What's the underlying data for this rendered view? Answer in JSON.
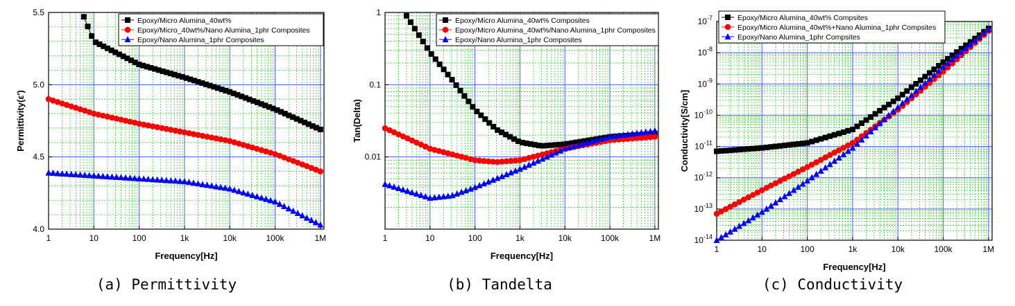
{
  "chart_data": [
    {
      "type": "scatter",
      "xlabel": "Frequency[Hz]",
      "ylabel": "Permittivity(ε')",
      "caption": "(a) Permittivity",
      "x_scale": "log",
      "y_scale": "linear",
      "xlim": [
        1,
        1200000
      ],
      "ylim": [
        4.0,
        5.5
      ],
      "x_ticks": [
        1,
        10,
        100,
        1000,
        10000,
        100000,
        1000000
      ],
      "x_tick_labels": [
        "1",
        "10",
        "100",
        "1k",
        "10k",
        "100k",
        "1M"
      ],
      "y_ticks": [
        4.0,
        4.5,
        5.0,
        5.5
      ],
      "y_tick_labels": [
        "4.0",
        "4.5",
        "5.0",
        "5.5"
      ],
      "grid": true,
      "legend_position": "top-right",
      "series": [
        {
          "name": "Epoxy/Micro Alumina_40wt%",
          "color": "#000000",
          "marker": "square",
          "x": [
            6,
            10,
            100,
            1000,
            10000,
            100000,
            1000000
          ],
          "y": [
            5.47,
            5.3,
            5.14,
            5.05,
            4.95,
            4.83,
            4.69
          ]
        },
        {
          "name": "Epoxy/Micro_40wt%/Nano Alumina_1phr Composites",
          "color": "#ff0000",
          "marker": "circle",
          "x": [
            1,
            10,
            100,
            1000,
            10000,
            100000,
            1000000
          ],
          "y": [
            4.9,
            4.8,
            4.73,
            4.67,
            4.61,
            4.52,
            4.4
          ]
        },
        {
          "name": "Epoxy/Nano Alumina_1phr Composites",
          "color": "#0000ff",
          "marker": "triangle",
          "x": [
            1,
            10,
            100,
            1000,
            10000,
            100000,
            1000000
          ],
          "y": [
            4.39,
            4.37,
            4.35,
            4.33,
            4.28,
            4.19,
            4.03
          ]
        }
      ]
    },
    {
      "type": "scatter",
      "xlabel": "Frequency[Hz]",
      "ylabel": "Tan(Delta)",
      "caption": "(b) Tandelta",
      "x_scale": "log",
      "y_scale": "log",
      "xlim": [
        1,
        1200000
      ],
      "ylim": [
        0.001,
        1
      ],
      "x_ticks": [
        1,
        10,
        100,
        1000,
        10000,
        100000,
        1000000
      ],
      "x_tick_labels": [
        "1",
        "10",
        "100",
        "1k",
        "10k",
        "100k",
        "1M"
      ],
      "y_ticks": [
        0.01,
        0.1,
        1
      ],
      "y_tick_labels": [
        "0.01",
        "0.1",
        "1"
      ],
      "grid": true,
      "legend_position": "top-right",
      "series": [
        {
          "name": "Epoxy/Micro Alumina_40wt% Composites",
          "color": "#000000",
          "marker": "square",
          "x": [
            3,
            10,
            30,
            100,
            300,
            1000,
            3000,
            10000,
            100000,
            1000000
          ],
          "y": [
            0.9,
            0.28,
            0.12,
            0.045,
            0.024,
            0.016,
            0.0142,
            0.015,
            0.019,
            0.021
          ]
        },
        {
          "name": "Epoxy/Micro Alumina_40wt%/Nano Alumina_1phr Composites",
          "color": "#ff0000",
          "marker": "circle",
          "x": [
            1,
            10,
            100,
            300,
            1000,
            10000,
            100000,
            1000000
          ],
          "y": [
            0.025,
            0.013,
            0.009,
            0.0085,
            0.009,
            0.013,
            0.017,
            0.019
          ]
        },
        {
          "name": "Epoxy/Nano Alumina_1phr Composites",
          "color": "#0000ff",
          "marker": "triangle",
          "x": [
            1,
            10,
            30,
            100,
            1000,
            10000,
            100000,
            1000000
          ],
          "y": [
            0.0042,
            0.0027,
            0.0029,
            0.0038,
            0.0068,
            0.013,
            0.019,
            0.023
          ]
        }
      ]
    },
    {
      "type": "scatter",
      "xlabel": "Frequency[Hz]",
      "ylabel": "Conductivity[S/cm]",
      "caption": "(c) Conductivity",
      "x_scale": "log",
      "y_scale": "log",
      "xlim": [
        1,
        1200000
      ],
      "ylim": [
        1e-14,
        1e-07
      ],
      "x_ticks": [
        1,
        10,
        100,
        1000,
        10000,
        100000,
        1000000
      ],
      "x_tick_labels": [
        "1",
        "10",
        "100",
        "1k",
        "10k",
        "100k",
        "1M"
      ],
      "y_tick_exponents": [
        -14,
        -13,
        -12,
        -11,
        -10,
        -9,
        -8,
        -7
      ],
      "y_tick_base": "10",
      "grid": true,
      "legend_position": "top-left",
      "series": [
        {
          "name": "Epoxy/Micro Alumina_40wt% Compsites",
          "color": "#000000",
          "marker": "square",
          "x": [
            1,
            10,
            100,
            1000,
            10000,
            100000,
            1000000
          ],
          "y": [
            7e-12,
            9e-12,
            1.3e-11,
            3.5e-11,
            3.5e-10,
            5e-09,
            6e-08
          ]
        },
        {
          "name": "Epoxy/Micro Alumina_40wt%+Nano Alumina_1phr Compsites",
          "color": "#ff0000",
          "marker": "circle",
          "x": [
            1,
            10,
            100,
            1000,
            10000,
            100000,
            1000000
          ],
          "y": [
            7e-14,
            4e-13,
            2.2e-12,
            1.3e-11,
            1.5e-10,
            2.5e-09,
            5e-08
          ]
        },
        {
          "name": "Epoxy/Nano Alumina_1phr Compsites",
          "color": "#0000ff",
          "marker": "triangle",
          "x": [
            1,
            10,
            100,
            1000,
            10000,
            100000,
            1000000
          ],
          "y": [
            1e-14,
            8e-14,
            8e-13,
            9e-12,
            1.8e-10,
            3.5e-09,
            5.5e-08
          ]
        }
      ]
    }
  ]
}
